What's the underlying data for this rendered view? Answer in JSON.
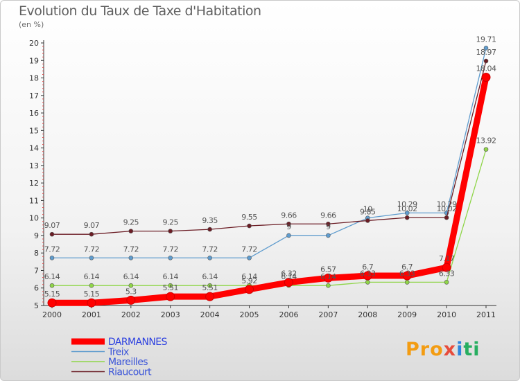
{
  "title": "Evolution du Taux de Taxe d'Habitation",
  "subtitle": "(en %)",
  "logo": [
    "Pro",
    "x",
    "i",
    "ti"
  ],
  "chart_data": {
    "type": "line",
    "x": [
      "2000",
      "2001",
      "2002",
      "2003",
      "2004",
      "2005",
      "2006",
      "2007",
      "2008",
      "2009",
      "2010",
      "2011"
    ],
    "ylim": [
      5,
      20
    ],
    "yticks": [
      5,
      6,
      7,
      8,
      9,
      10,
      11,
      12,
      13,
      14,
      15,
      16,
      17,
      18,
      19,
      20
    ],
    "grid": false,
    "legend_position": "bottom-left",
    "series": [
      {
        "name": "DARMANNES",
        "color": "#ff0000",
        "values": [
          5.15,
          5.15,
          5.3,
          5.51,
          5.51,
          5.92,
          6.32,
          6.57,
          6.7,
          6.7,
          7.17,
          18.04
        ]
      },
      {
        "name": "Treix",
        "color": "#5f9cce",
        "values": [
          7.72,
          7.72,
          7.72,
          7.72,
          7.72,
          7.72,
          9,
          9,
          10,
          10.29,
          10.29,
          19.71
        ]
      },
      {
        "name": "Mareilles",
        "color": "#8fd548",
        "values": [
          6.14,
          6.14,
          6.14,
          6.14,
          6.14,
          6.14,
          6.14,
          6.14,
          6.33,
          6.33,
          6.33,
          13.92
        ]
      },
      {
        "name": "Riaucourt",
        "color": "#6b1c24",
        "values": [
          9.07,
          9.07,
          9.25,
          9.25,
          9.35,
          9.55,
          9.66,
          9.66,
          9.85,
          10.02,
          10.02,
          18.97
        ]
      }
    ],
    "data_labels": {
      "DARMANNES": [
        "5.15",
        "5.15",
        "5.3",
        "5.51",
        "5.51",
        "5.92",
        "6.32",
        "6.57",
        "6.7",
        "6.7",
        "7.17",
        "18.04"
      ],
      "Treix": [
        "7.72",
        "7.72",
        "7.72",
        "7.72",
        "7.72",
        "7.72",
        "9",
        "9",
        "10",
        "10.29",
        "10.29",
        "19.71"
      ],
      "Mareilles": [
        "6.14",
        "6.14",
        "6.14",
        "6.14",
        "6.14",
        "6.14",
        "6.14",
        "6.14",
        "6.33",
        "6.33",
        "6.33",
        "13.92"
      ],
      "Riaucourt": [
        "9.07",
        "9.07",
        "9.25",
        "9.25",
        "9.35",
        "9.55",
        "9.66",
        "9.66",
        "9.85",
        "10.02",
        "10.02",
        "18.97"
      ]
    }
  }
}
